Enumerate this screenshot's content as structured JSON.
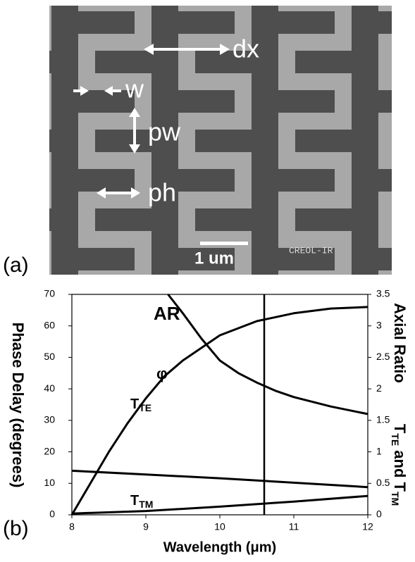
{
  "panel_a": {
    "label": "(a)",
    "annotations": {
      "dx": "dx",
      "w": "w",
      "pw": "pw",
      "ph": "ph"
    },
    "scale_bar": "1 um",
    "watermark": "CREOL-IR"
  },
  "panel_b_label": "(b)",
  "chart_data": {
    "type": "line",
    "xlabel": "Wavelength (μm)",
    "ylabel": "Phase Delay (degrees)",
    "y2label_top": "Axial Ratio",
    "y2label_bottom": [
      "T",
      "TE",
      " and T",
      "TM"
    ],
    "xlim": [
      8,
      12
    ],
    "xticks": [
      8,
      9,
      10,
      11,
      12
    ],
    "ylim": [
      0,
      70
    ],
    "yticks": [
      0,
      10,
      20,
      30,
      40,
      50,
      60,
      70
    ],
    "y2lim": [
      0,
      3.5
    ],
    "y2ticks": [
      0,
      0.5,
      1,
      1.5,
      2,
      2.5,
      3,
      3.5
    ],
    "vline": 10.6,
    "series": [
      {
        "name": "φ",
        "color": "#000000",
        "x": [
          8,
          8.25,
          8.5,
          8.75,
          9,
          9.25,
          9.5,
          9.75,
          10,
          10.5,
          11,
          11.5,
          12
        ],
        "values": [
          0,
          10,
          20,
          29,
          37,
          44,
          49,
          53,
          57,
          61.5,
          64,
          65.5,
          66
        ]
      },
      {
        "name": "AR",
        "color": "#000000",
        "axis": "y2",
        "x": [
          9.3,
          9.5,
          9.75,
          10,
          10.25,
          10.5,
          10.75,
          11,
          11.5,
          12
        ],
        "values": [
          3.5,
          3.2,
          2.8,
          2.45,
          2.25,
          2.1,
          1.97,
          1.87,
          1.72,
          1.6
        ]
      },
      {
        "name": "T",
        "subscript": "TE",
        "color": "#000000",
        "axis": "y2",
        "x": [
          8,
          9,
          10,
          11,
          12
        ],
        "values": [
          0.7,
          0.64,
          0.58,
          0.51,
          0.44
        ]
      },
      {
        "name": "T",
        "subscript": "TM",
        "color": "#000000",
        "axis": "y2",
        "x": [
          8,
          9,
          10,
          11,
          12
        ],
        "values": [
          0.02,
          0.06,
          0.13,
          0.21,
          0.3
        ]
      }
    ]
  }
}
